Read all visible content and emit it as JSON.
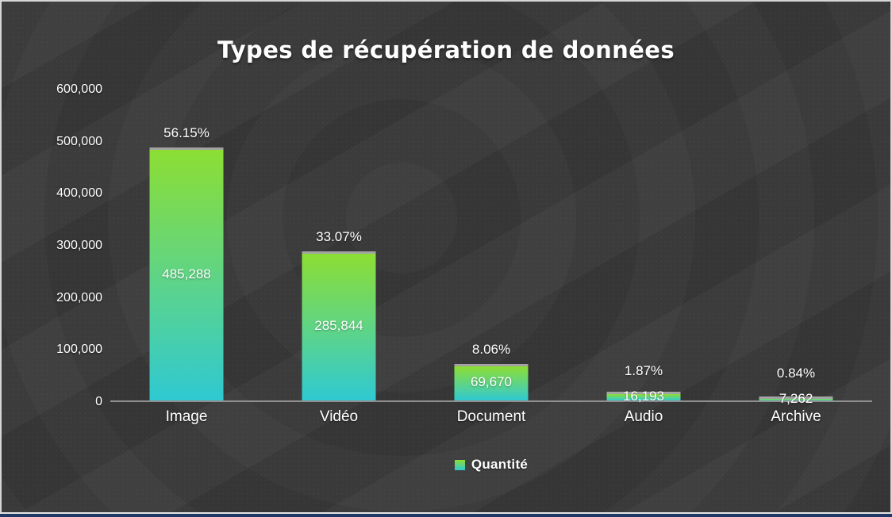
{
  "window": {
    "border_color": "#d6d6d6",
    "footer_line_color": "#e4e4e4",
    "footer_accent_color": "#1f3864",
    "background_color": "#393939"
  },
  "chart_data": {
    "type": "bar",
    "title": "Types de récupération de données",
    "categories": [
      "Image",
      "Vidéo",
      "Document",
      "Audio",
      "Archive"
    ],
    "series": [
      {
        "name": "Quantité",
        "values": [
          485288,
          285844,
          69670,
          16193,
          7262
        ]
      }
    ],
    "value_labels": [
      "485,288",
      "285,844",
      "69,670",
      "16,193",
      "7,262"
    ],
    "pct_labels": [
      "56.15%",
      "33.07%",
      "8.06%",
      "1.87%",
      "0.84%"
    ],
    "y_ticks": [
      "600,000",
      "500,000",
      "400,000",
      "300,000",
      "200,000",
      "100,000",
      "0"
    ],
    "ylim": [
      0,
      600000
    ],
    "grid": false,
    "legend": {
      "label": "Quantité",
      "position": "bottom"
    },
    "colors": {
      "bar_gradient_top": "#8cde33",
      "bar_gradient_bottom": "#2fc9d2",
      "bar_top_cap": "#a3a3a3",
      "axis_line": "#909090",
      "text": "#ffffff"
    }
  }
}
